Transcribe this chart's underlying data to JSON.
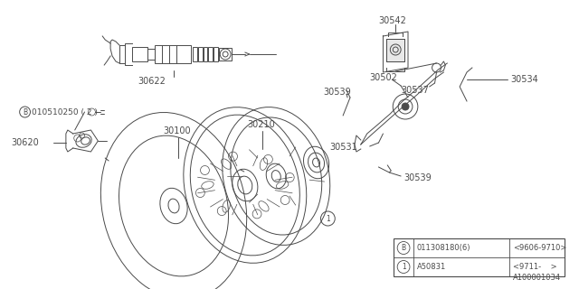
{
  "bg_color": "#ffffff",
  "line_color": "#4a4a4a",
  "lw": 0.7,
  "diagram_code": "A100001034",
  "table_row1_sym": "B",
  "table_row1_pn": "011308180(6)",
  "table_row1_date": "<9606-9710>",
  "table_row2_sym": "1",
  "table_row2_pn": "A50831",
  "table_row2_date": "<9711-    >",
  "label_30622": "30622",
  "label_30542": "30542",
  "label_30534": "30534",
  "label_30537": "30537",
  "label_30531": "30531",
  "label_30502": "30502",
  "label_30539a": "30539",
  "label_30539b": "30539",
  "label_30210": "30210",
  "label_30100": "30100",
  "label_30620": "30620",
  "label_bolt": "010510250 ( 2 )"
}
